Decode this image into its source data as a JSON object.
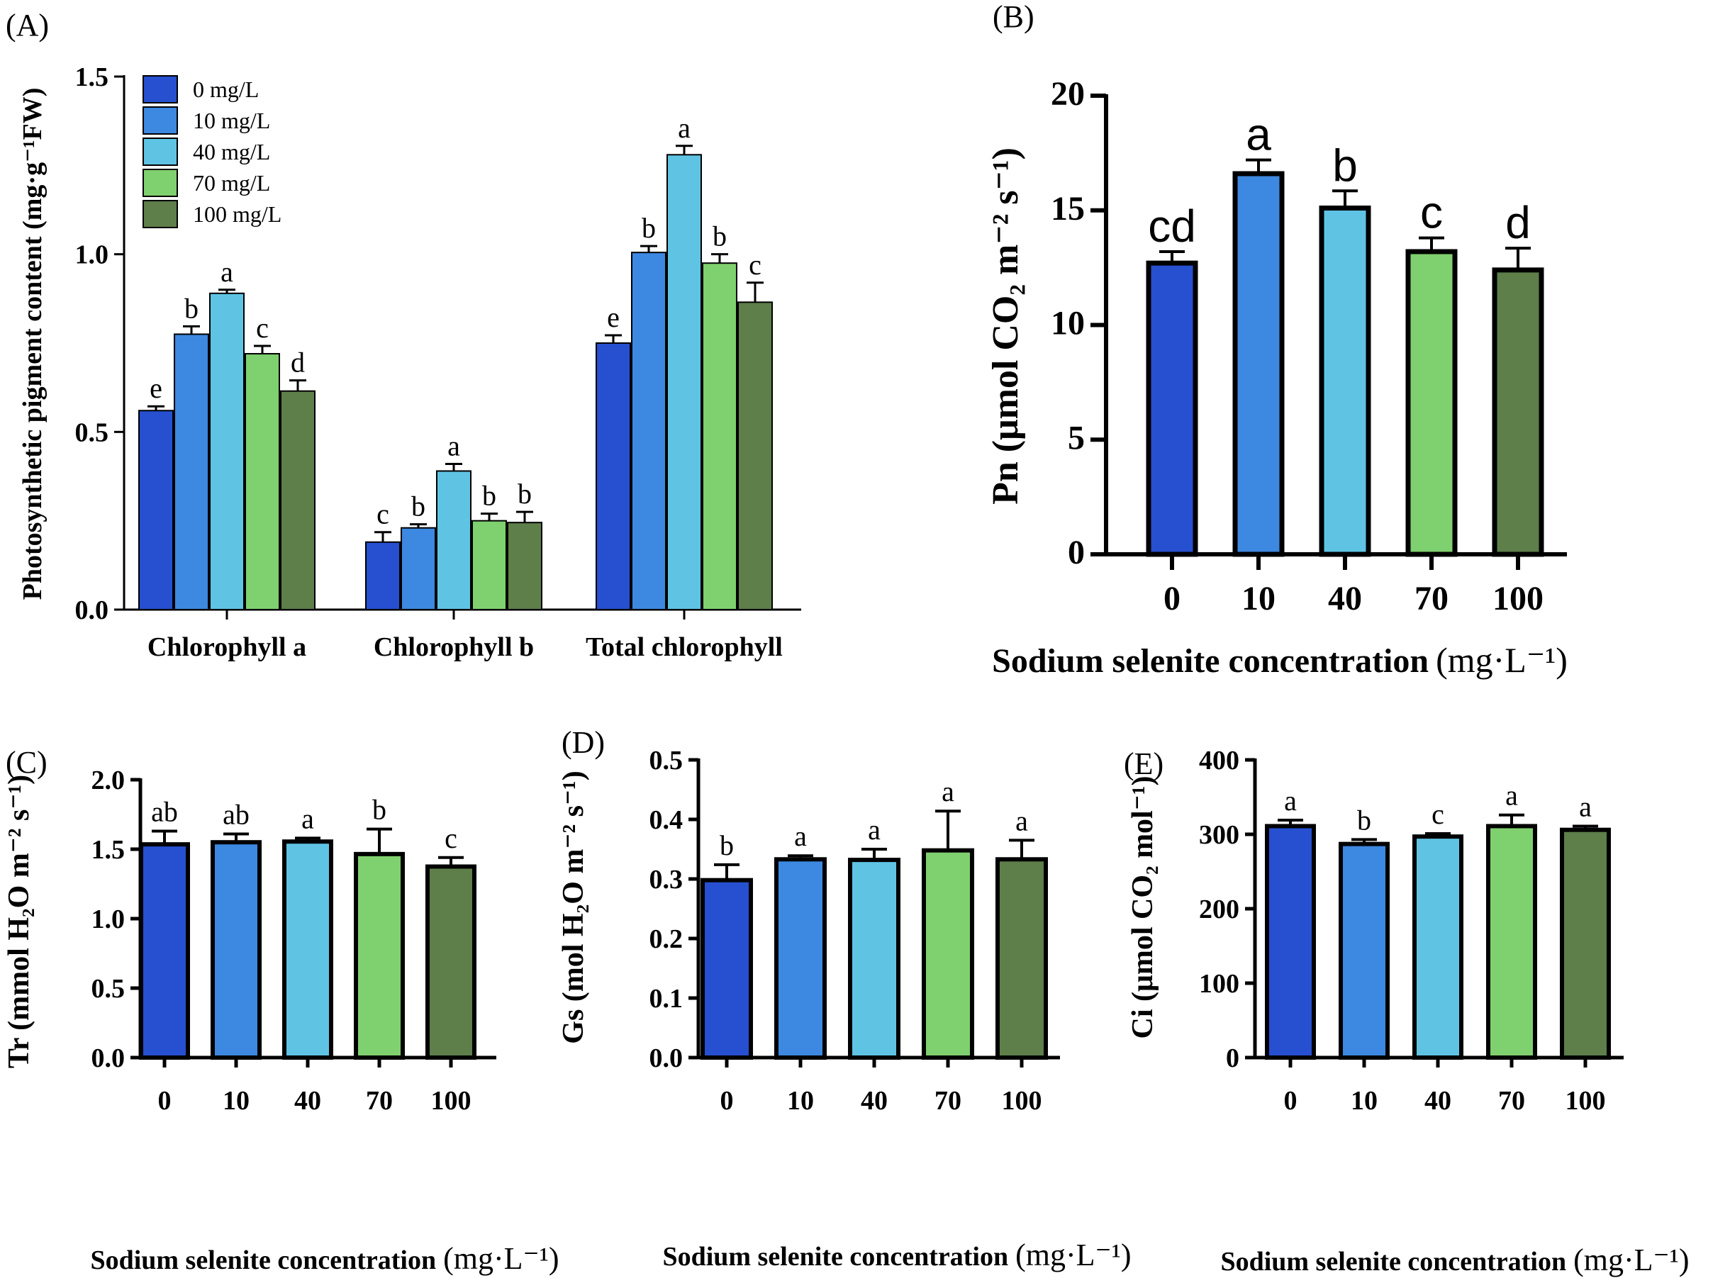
{
  "colors": {
    "0": "#2650d0",
    "10": "#3d88e0",
    "40": "#5fc4e4",
    "70": "#7fd06e",
    "100": "#5e7e4a"
  },
  "chart_data": [
    {
      "id": "A",
      "panel_label": "(A)",
      "type": "bar",
      "ylabel": "Photosynthetic pigment content (mg·g⁻¹FW)",
      "ylim": [
        0,
        1.5
      ],
      "yticks": [
        "0.0",
        "0.5",
        "1.0",
        "1.5"
      ],
      "categories": [
        "Chlorophyll a",
        "Chlorophyll b",
        "Total chlorophyll"
      ],
      "legend": [
        "0 mg/L",
        "10 mg/L",
        "40 mg/L",
        "70 mg/L",
        "100 mg/L"
      ],
      "series": [
        {
          "name": "0 mg/L",
          "values": [
            0.56,
            0.19,
            0.75
          ],
          "errors": [
            0.012,
            0.028,
            0.022
          ],
          "letters": [
            "e",
            "c",
            "e"
          ]
        },
        {
          "name": "10 mg/L",
          "values": [
            0.775,
            0.23,
            1.005
          ],
          "errors": [
            0.022,
            0.01,
            0.018
          ],
          "letters": [
            "b",
            "b",
            "b"
          ]
        },
        {
          "name": "40 mg/L",
          "values": [
            0.89,
            0.39,
            1.28
          ],
          "errors": [
            0.01,
            0.02,
            0.025
          ],
          "letters": [
            "a",
            "a",
            "a"
          ]
        },
        {
          "name": "70 mg/L",
          "values": [
            0.72,
            0.25,
            0.975
          ],
          "errors": [
            0.022,
            0.02,
            0.025
          ],
          "letters": [
            "c",
            "b",
            "b"
          ]
        },
        {
          "name": "100 mg/L",
          "values": [
            0.615,
            0.245,
            0.865
          ],
          "errors": [
            0.03,
            0.03,
            0.055
          ],
          "letters": [
            "d",
            "b",
            "c"
          ]
        }
      ]
    },
    {
      "id": "B",
      "panel_label": "(B)",
      "type": "bar",
      "ylabel": "Pn (μmol CO₂ m⁻² s⁻¹)",
      "xlabel": "Sodium selenite concentration",
      "xlabel_unit": "(mg·L⁻¹)",
      "ylim": [
        0,
        20
      ],
      "yticks": [
        "0",
        "5",
        "10",
        "15",
        "20"
      ],
      "categories": [
        "0",
        "10",
        "40",
        "70",
        "100"
      ],
      "values": [
        12.7,
        16.6,
        15.1,
        13.2,
        12.4
      ],
      "errors": [
        0.5,
        0.6,
        0.75,
        0.6,
        0.95
      ],
      "letters": [
        "cd",
        "a",
        "b",
        "c",
        "d"
      ]
    },
    {
      "id": "C",
      "panel_label": "(C)",
      "type": "bar",
      "ylabel": "Tr (mmol H₂O m⁻² s⁻¹)",
      "xlabel": "Sodium selenite concentration",
      "xlabel_unit": "(mg·L⁻¹)",
      "ylim": [
        0,
        2.0
      ],
      "yticks": [
        "0.0",
        "0.5",
        "1.0",
        "1.5",
        "2.0"
      ],
      "categories": [
        "0",
        "10",
        "40",
        "70",
        "100"
      ],
      "values": [
        1.535,
        1.55,
        1.555,
        1.465,
        1.375
      ],
      "errors": [
        0.095,
        0.06,
        0.025,
        0.18,
        0.065
      ],
      "letters": [
        "ab",
        "ab",
        "a",
        "b",
        "c"
      ]
    },
    {
      "id": "D",
      "panel_label": "(D)",
      "type": "bar",
      "ylabel": "Gs (mol H₂O m⁻² s⁻¹)",
      "xlabel": "Sodium selenite concentration",
      "xlabel_unit": "(mg·L⁻¹)",
      "ylim": [
        0,
        0.5
      ],
      "yticks": [
        "0.0",
        "0.1",
        "0.2",
        "0.3",
        "0.4",
        "0.5"
      ],
      "categories": [
        "0",
        "10",
        "40",
        "70",
        "100"
      ],
      "values": [
        0.298,
        0.333,
        0.332,
        0.348,
        0.333
      ],
      "errors": [
        0.026,
        0.006,
        0.018,
        0.066,
        0.032
      ],
      "letters": [
        "b",
        "a",
        "a",
        "a",
        "a"
      ]
    },
    {
      "id": "E",
      "panel_label": "(E)",
      "type": "bar",
      "ylabel": "Ci (μmol CO₂ mol⁻¹)",
      "xlabel": "Sodium selenite concentration",
      "xlabel_unit": "(mg·L⁻¹)",
      "ylim": [
        0,
        400
      ],
      "yticks": [
        "0",
        "100",
        "200",
        "300",
        "400"
      ],
      "categories": [
        "0",
        "10",
        "40",
        "70",
        "100"
      ],
      "values": [
        311,
        287,
        297,
        311,
        306
      ],
      "errors": [
        8,
        6,
        4,
        15,
        5
      ],
      "letters": [
        "a",
        "b",
        "c",
        "a",
        "a"
      ]
    }
  ]
}
